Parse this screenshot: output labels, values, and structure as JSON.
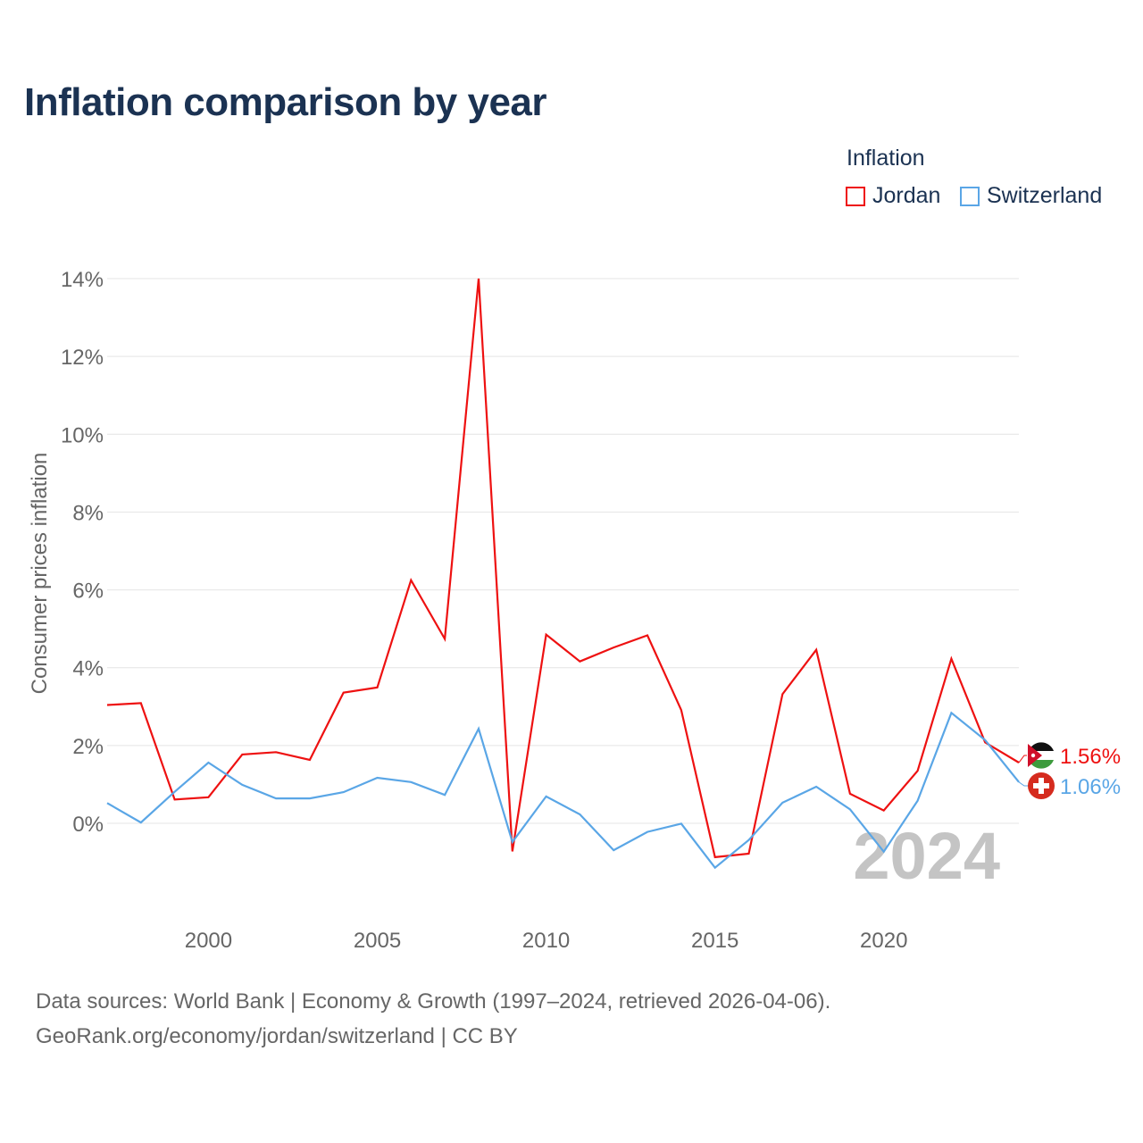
{
  "title": "Inflation comparison by year",
  "legend": {
    "title": "Inflation",
    "items": [
      {
        "label": "Jordan",
        "color": "#ee1111"
      },
      {
        "label": "Switzerland",
        "color": "#5aa6e6"
      }
    ]
  },
  "chart_data": {
    "type": "line",
    "ylabel": "Consumer prices inflation",
    "xlabel": "",
    "xlim": [
      1997,
      2024
    ],
    "ylim": [
      -2,
      14
    ],
    "yticks": [
      0,
      2,
      4,
      6,
      8,
      10,
      12,
      14
    ],
    "ytick_labels": [
      "0%",
      "2%",
      "4%",
      "6%",
      "8%",
      "10%",
      "12%",
      "14%"
    ],
    "xticks": [
      2000,
      2005,
      2010,
      2015,
      2020
    ],
    "xtick_labels": [
      "2000",
      "2005",
      "2010",
      "2015",
      "2020"
    ],
    "grid": true,
    "watermark": "2024",
    "x": [
      1997,
      1998,
      1999,
      2000,
      2001,
      2002,
      2003,
      2004,
      2005,
      2006,
      2007,
      2008,
      2009,
      2010,
      2011,
      2012,
      2013,
      2014,
      2015,
      2016,
      2017,
      2018,
      2019,
      2020,
      2021,
      2022,
      2023,
      2024
    ],
    "series": [
      {
        "name": "Jordan",
        "color": "#ee1111",
        "end_label": "1.56%",
        "values": [
          3.04,
          3.09,
          0.61,
          0.67,
          1.77,
          1.83,
          1.63,
          3.36,
          3.49,
          6.25,
          4.74,
          14.0,
          -0.72,
          4.85,
          4.16,
          4.52,
          4.83,
          2.91,
          -0.87,
          -0.78,
          3.32,
          4.46,
          0.76,
          0.33,
          1.35,
          4.23,
          2.08,
          1.56
        ]
      },
      {
        "name": "Switzerland",
        "color": "#5aa6e6",
        "end_label": "1.06%",
        "values": [
          0.52,
          0.02,
          0.81,
          1.56,
          0.99,
          0.64,
          0.64,
          0.8,
          1.17,
          1.06,
          0.73,
          2.43,
          -0.48,
          0.69,
          0.23,
          -0.69,
          -0.22,
          -0.01,
          -1.14,
          -0.43,
          0.53,
          0.94,
          0.36,
          -0.73,
          0.58,
          2.84,
          2.14,
          1.06
        ]
      }
    ]
  },
  "footer": {
    "line1": "Data sources: World Bank | Economy & Growth (1997–2024, retrieved 2026-04-06).",
    "line2": "GeoRank.org/economy/jordan/switzerland | CC BY"
  }
}
